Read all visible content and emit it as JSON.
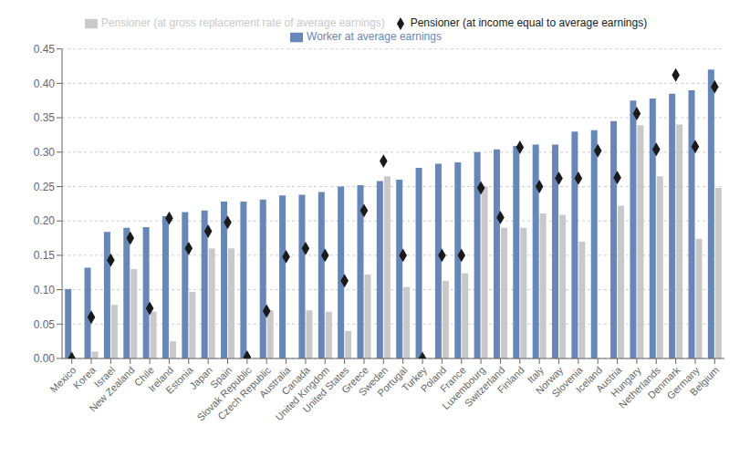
{
  "chart_data": {
    "type": "bar",
    "categories": [
      "Mexico",
      "Korea",
      "Israel",
      "New Zealand",
      "Chile",
      "Ireland",
      "Estonia",
      "Japan",
      "Spain",
      "Slovak Republic",
      "Czech Republic",
      "Australia",
      "Canada",
      "United Kingdom",
      "United States",
      "Greece",
      "Sweden",
      "Portugal",
      "Turkey",
      "Poland",
      "France",
      "Luxembourg",
      "Switzerland",
      "Finland",
      "Italy",
      "Norway",
      "Slovenia",
      "Iceland",
      "Austria",
      "Hungary",
      "Netherlands",
      "Denmark",
      "Germany",
      "Belgium"
    ],
    "series": [
      {
        "name": "Worker at average earnings",
        "type": "bar",
        "color": "#6687b8",
        "values": [
          0.101,
          0.132,
          0.184,
          0.19,
          0.191,
          0.207,
          0.213,
          0.215,
          0.228,
          0.228,
          0.231,
          0.237,
          0.238,
          0.242,
          0.25,
          0.252,
          0.258,
          0.26,
          0.277,
          0.283,
          0.285,
          0.3,
          0.304,
          0.309,
          0.311,
          0.311,
          0.33,
          0.332,
          0.345,
          0.375,
          0.378,
          0.385,
          0.39,
          0.42
        ]
      },
      {
        "name": "Pensioner (at gross replacement rate of average earnings)",
        "type": "bar",
        "color": "#c9c9c9",
        "values": [
          0.0,
          0.01,
          0.078,
          0.13,
          0.068,
          0.025,
          0.097,
          0.16,
          0.16,
          0.0,
          0.07,
          0.0,
          0.07,
          0.068,
          0.04,
          0.122,
          0.265,
          0.104,
          0.0,
          0.113,
          0.124,
          0.25,
          0.19,
          0.19,
          0.211,
          0.209,
          0.17,
          0.0,
          0.222,
          0.339,
          0.265,
          0.34,
          0.174,
          0.248
        ]
      },
      {
        "name": "Pensioner (at income equal to average earnings)",
        "type": "scatter",
        "color": "#1a1a1a",
        "marker": "diamond",
        "values": [
          0.0,
          0.06,
          0.143,
          0.175,
          0.073,
          0.204,
          0.16,
          0.185,
          0.198,
          0.002,
          0.069,
          0.148,
          0.16,
          0.15,
          0.113,
          0.215,
          0.287,
          0.15,
          0.0,
          0.15,
          0.15,
          0.248,
          0.205,
          0.307,
          0.25,
          0.262,
          0.262,
          0.302,
          0.263,
          0.356,
          0.304,
          0.412,
          0.308,
          0.395
        ]
      }
    ],
    "ylim": [
      0.0,
      0.45
    ],
    "yticks": [
      {
        "value": 0.0,
        "label": "0.00"
      },
      {
        "value": 0.05,
        "label": "0.05"
      },
      {
        "value": 0.1,
        "label": "0.10"
      },
      {
        "value": 0.15,
        "label": "0.15"
      },
      {
        "value": 0.2,
        "label": "0.20"
      },
      {
        "value": 0.25,
        "label": "0.25"
      },
      {
        "value": 0.3,
        "label": "0.30"
      },
      {
        "value": 0.35,
        "label": "0.35"
      },
      {
        "value": 0.4,
        "label": "0.40"
      },
      {
        "value": 0.45,
        "label": "0.45"
      }
    ],
    "grid": true,
    "legend": "top"
  }
}
